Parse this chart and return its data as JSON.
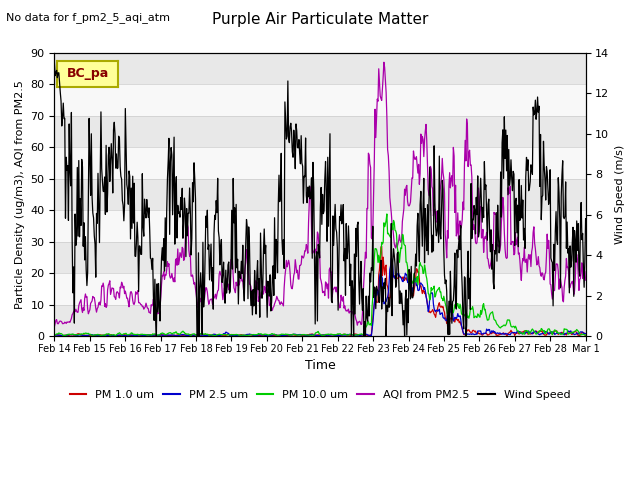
{
  "title": "Purple Air Particulate Matter",
  "subtitle": "No data for f_pm2_5_aqi_atm",
  "ylabel_left": "Particle Density (ug/m3), AQI from PM2.5",
  "ylabel_right": "Wind Speed (m/s)",
  "xlabel": "Time",
  "legend_label": "BC_pa",
  "ylim_left": [
    0,
    90
  ],
  "ylim_right": [
    0,
    14
  ],
  "xtick_labels": [
    "Feb 14",
    "Feb 15",
    "Feb 16",
    "Feb 17",
    "Feb 18",
    "Feb 19",
    "Feb 20",
    "Feb 21",
    "Feb 22",
    "Feb 23",
    "Feb 24",
    "Feb 25",
    "Feb 26",
    "Feb 27",
    "Feb 28",
    "Mar 1"
  ],
  "colors": {
    "pm1": "#cc0000",
    "pm25": "#0000cc",
    "pm10": "#00cc00",
    "aqi": "#aa00aa",
    "wind": "#000000",
    "legend_bg": "#ffff99",
    "legend_border": "#aaaa00",
    "bg_band1": "#e8e8e8",
    "bg_band2": "#f8f8f8"
  },
  "wind_yticks": [
    0,
    2,
    4,
    6,
    8,
    10,
    12,
    14
  ],
  "left_yticks": [
    0,
    10,
    20,
    30,
    40,
    50,
    60,
    70,
    80,
    90
  ]
}
